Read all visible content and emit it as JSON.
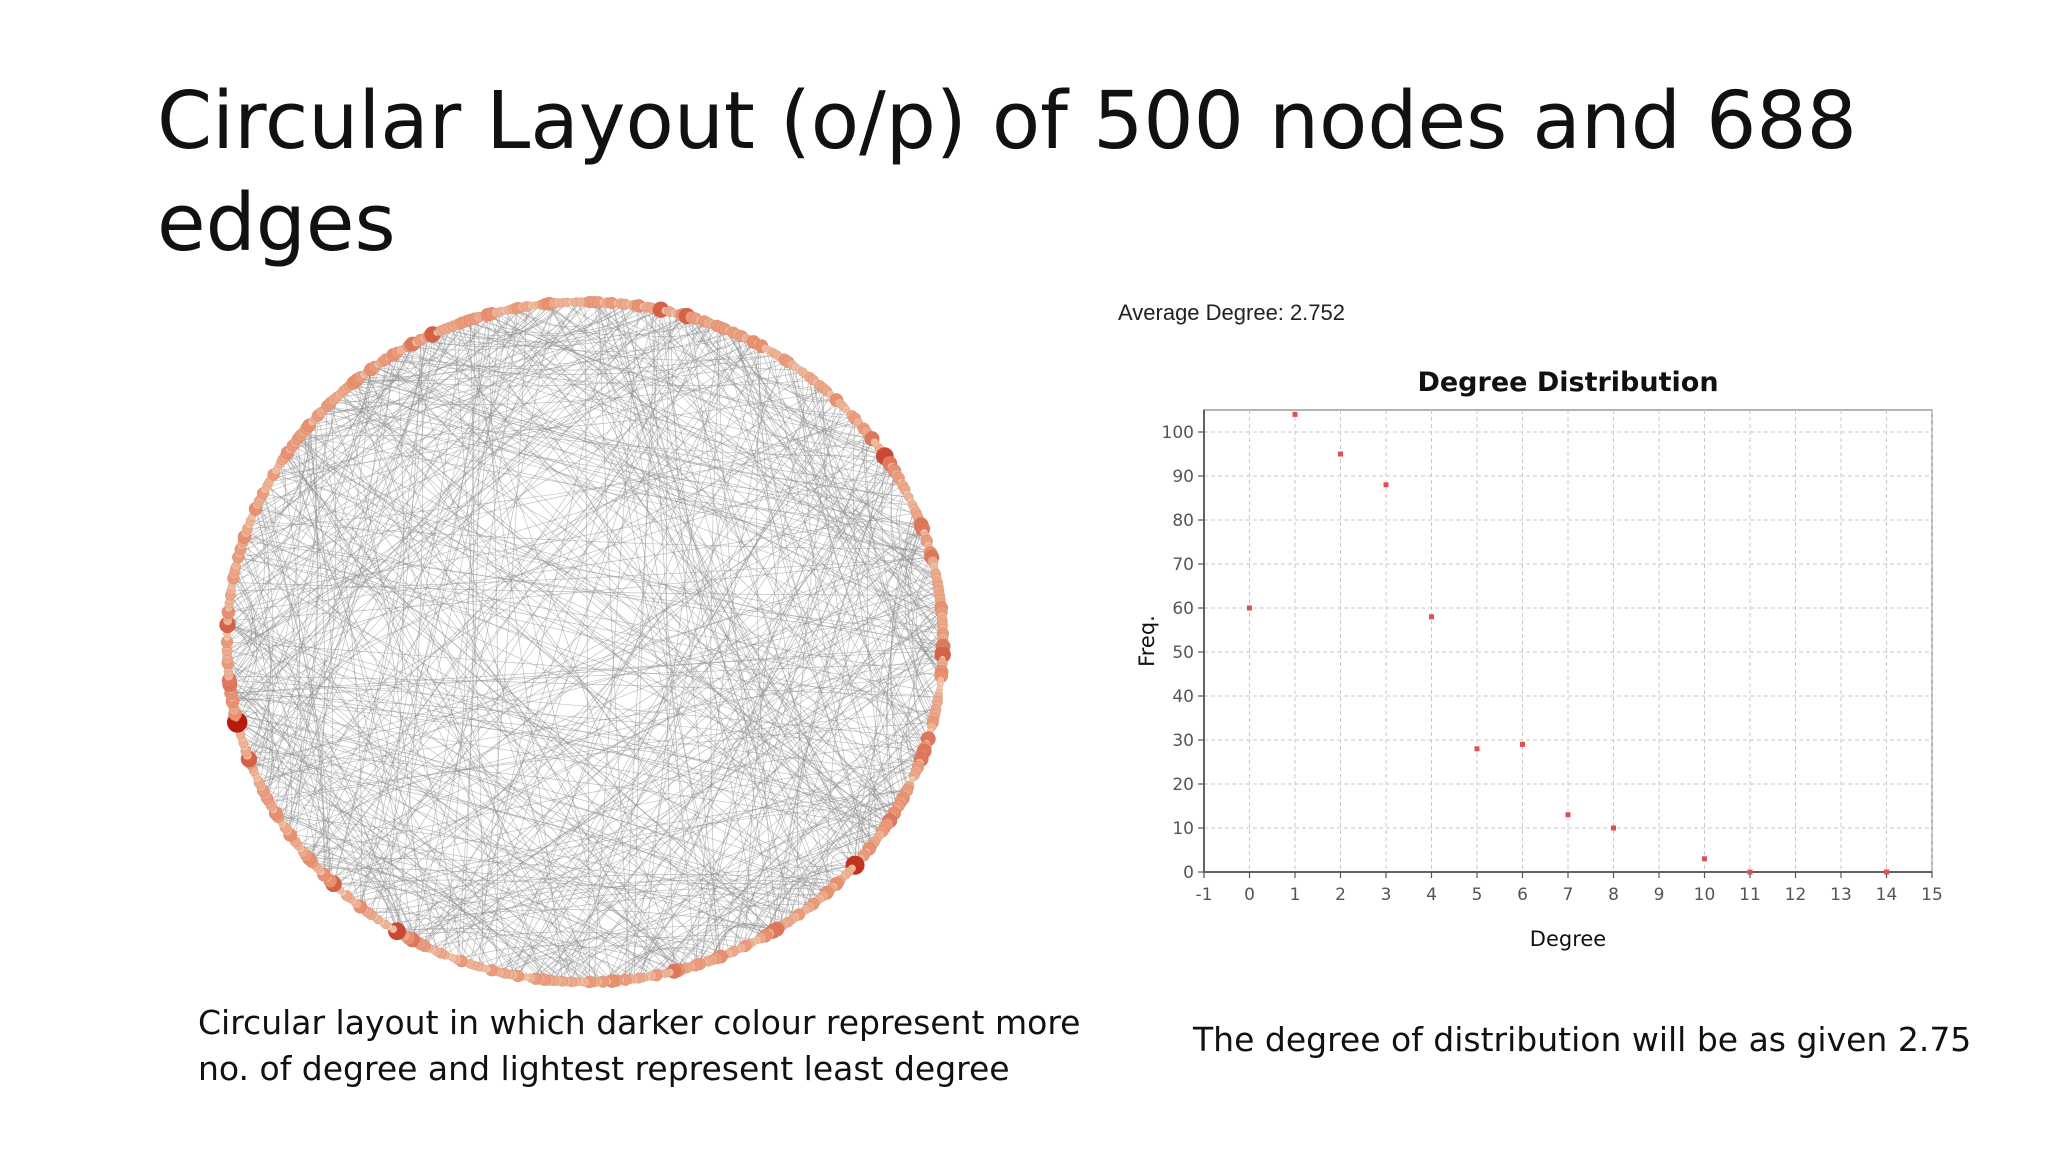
{
  "slide": {
    "title": "Circular Layout (o/p) of 500 nodes and 688 edges",
    "caption_left": "Circular layout in which darker colour represent more no. of degree and lightest represent least degree",
    "caption_right": "The degree of distribution will be as given 2.75"
  },
  "network": {
    "nodes": 500,
    "edges": 688,
    "colors": {
      "node_light": "#f5c9ae",
      "node_mid": "#e89070",
      "node_dark": "#b81a0c",
      "edge": "#8e8e8e"
    }
  },
  "average_degree": {
    "label": "Average Degree:",
    "value": "2.752"
  },
  "chart_data": {
    "type": "scatter",
    "title": "Degree Distribution",
    "xlabel": "Degree",
    "ylabel": "Freq.",
    "xlim": [
      -1,
      15
    ],
    "ylim": [
      0,
      105
    ],
    "xticks": [
      "-1",
      "0",
      "1",
      "2",
      "3",
      "4",
      "5",
      "6",
      "7",
      "8",
      "9",
      "10",
      "11",
      "12",
      "13",
      "14",
      "15"
    ],
    "yticks": [
      "0",
      "10",
      "20",
      "30",
      "40",
      "50",
      "60",
      "70",
      "80",
      "90",
      "100"
    ],
    "grid": true,
    "point_color": "#e05050",
    "series": [
      {
        "points": [
          {
            "x": 0,
            "y": 60
          },
          {
            "x": 1,
            "y": 104
          },
          {
            "x": 2,
            "y": 95
          },
          {
            "x": 3,
            "y": 88
          },
          {
            "x": 4,
            "y": 58
          },
          {
            "x": 5,
            "y": 28
          },
          {
            "x": 6,
            "y": 29
          },
          {
            "x": 7,
            "y": 13
          },
          {
            "x": 8,
            "y": 10
          },
          {
            "x": 10,
            "y": 3
          },
          {
            "x": 11,
            "y": 0
          },
          {
            "x": 14,
            "y": 0
          }
        ]
      }
    ]
  }
}
